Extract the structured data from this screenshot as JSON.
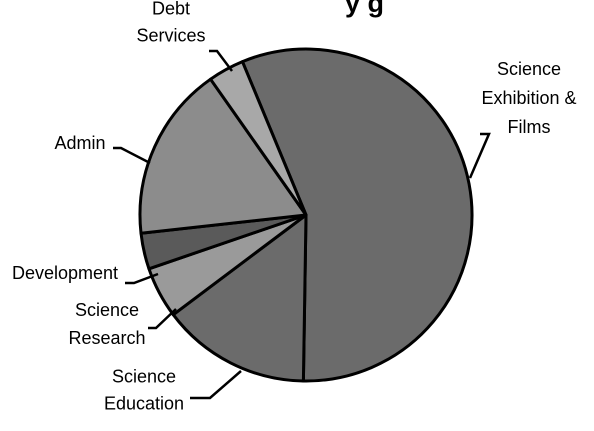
{
  "chart_data": {
    "type": "pie",
    "title": "",
    "title_fragment": "y g",
    "slices": [
      {
        "label": "Science Exhibition & Films",
        "label_lines": [
          "Science",
          "Exhibition &",
          "Films"
        ],
        "value": 56.5,
        "color": "#6b6b6b"
      },
      {
        "label": "Science Education",
        "label_lines": [
          "Science",
          "Education"
        ],
        "value": 14.5,
        "color": "#6b6b6b"
      },
      {
        "label": "Science Research",
        "label_lines": [
          "Science",
          "Research"
        ],
        "value": 5.0,
        "color": "#9a9a9a"
      },
      {
        "label": "Development",
        "label_lines": [
          "Development"
        ],
        "value": 3.5,
        "color": "#5a5a5a"
      },
      {
        "label": "Admin",
        "label_lines": [
          "Admin"
        ],
        "value": 17.0,
        "color": "#8c8c8c"
      },
      {
        "label": "Debt Services",
        "label_lines": [
          "Debt",
          "Services"
        ],
        "value": 3.5,
        "color": "#a8a8a8"
      }
    ],
    "legend": "none",
    "outline_color": "#000000"
  }
}
